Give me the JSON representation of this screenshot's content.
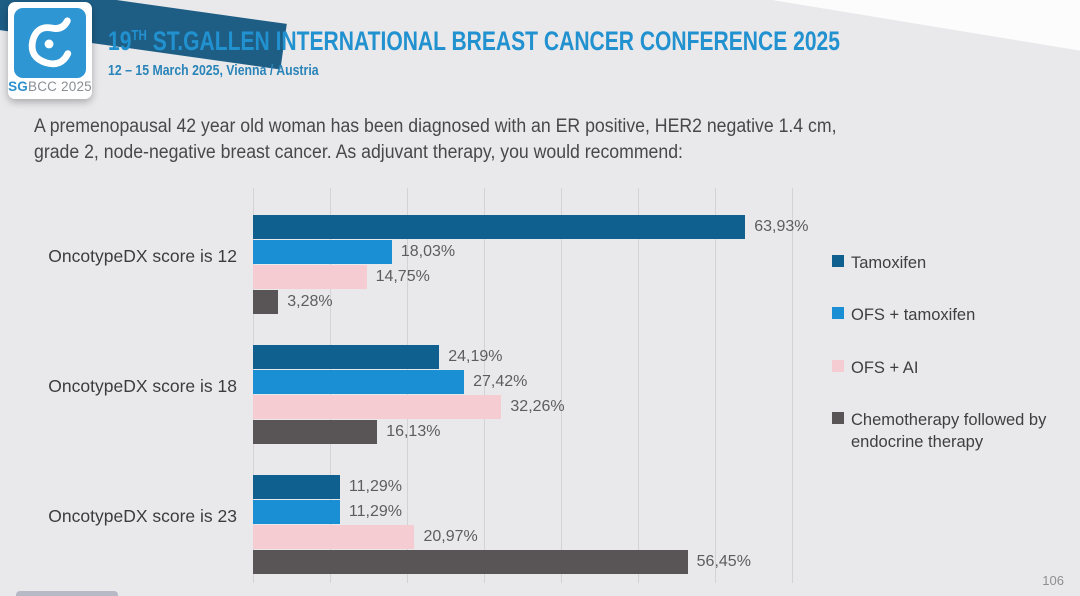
{
  "header": {
    "logo_sg": "SG",
    "logo_rest": "BCC 2025",
    "title_num": "19",
    "title_sup": "TH",
    "title_rest": " ST.GALLEN INTERNATIONAL BREAST CANCER CONFERENCE 2025",
    "subtitle": "12 – 15 March 2025, Vienna / Austria"
  },
  "question": {
    "line1": "A premenopausal 42 year old woman has been diagnosed with an ER positive, HER2 negative 1.4 cm,",
    "line2": "grade 2, node-negative breast cancer. As adjuvant therapy, you would recommend:"
  },
  "chart_data": {
    "type": "bar",
    "orientation": "horizontal",
    "categories": [
      "OncotypeDX score is 12",
      "OncotypeDX score is 18",
      "OncotypeDX score is 23"
    ],
    "series": [
      {
        "name": "Tamoxifen",
        "color": "#10608f",
        "values": [
          63.93,
          24.19,
          11.29
        ],
        "value_labels": [
          "63,93%",
          "24,19%",
          "11,29%"
        ]
      },
      {
        "name": "OFS + tamoxifen",
        "color": "#1b8fd4",
        "values": [
          18.03,
          27.42,
          11.29
        ],
        "value_labels": [
          "18,03%",
          "27,42%",
          "11,29%"
        ]
      },
      {
        "name": "OFS + AI",
        "color": "#f5ccd2",
        "values": [
          14.75,
          32.26,
          20.97
        ],
        "value_labels": [
          "14,75%",
          "32,26%",
          "20,97%"
        ]
      },
      {
        "name": "Chemotherapy followed by endocrine therapy",
        "color": "#595557",
        "values": [
          3.28,
          16.13,
          56.45
        ],
        "value_labels": [
          "3,28%",
          "16,13%",
          "56,45%"
        ]
      }
    ],
    "xlim": [
      0,
      70
    ],
    "gridline_step": 10,
    "grid": true,
    "legend_position": "right",
    "value_label_format": "decimal-comma-percent"
  },
  "footer": {
    "page_number": "106"
  }
}
